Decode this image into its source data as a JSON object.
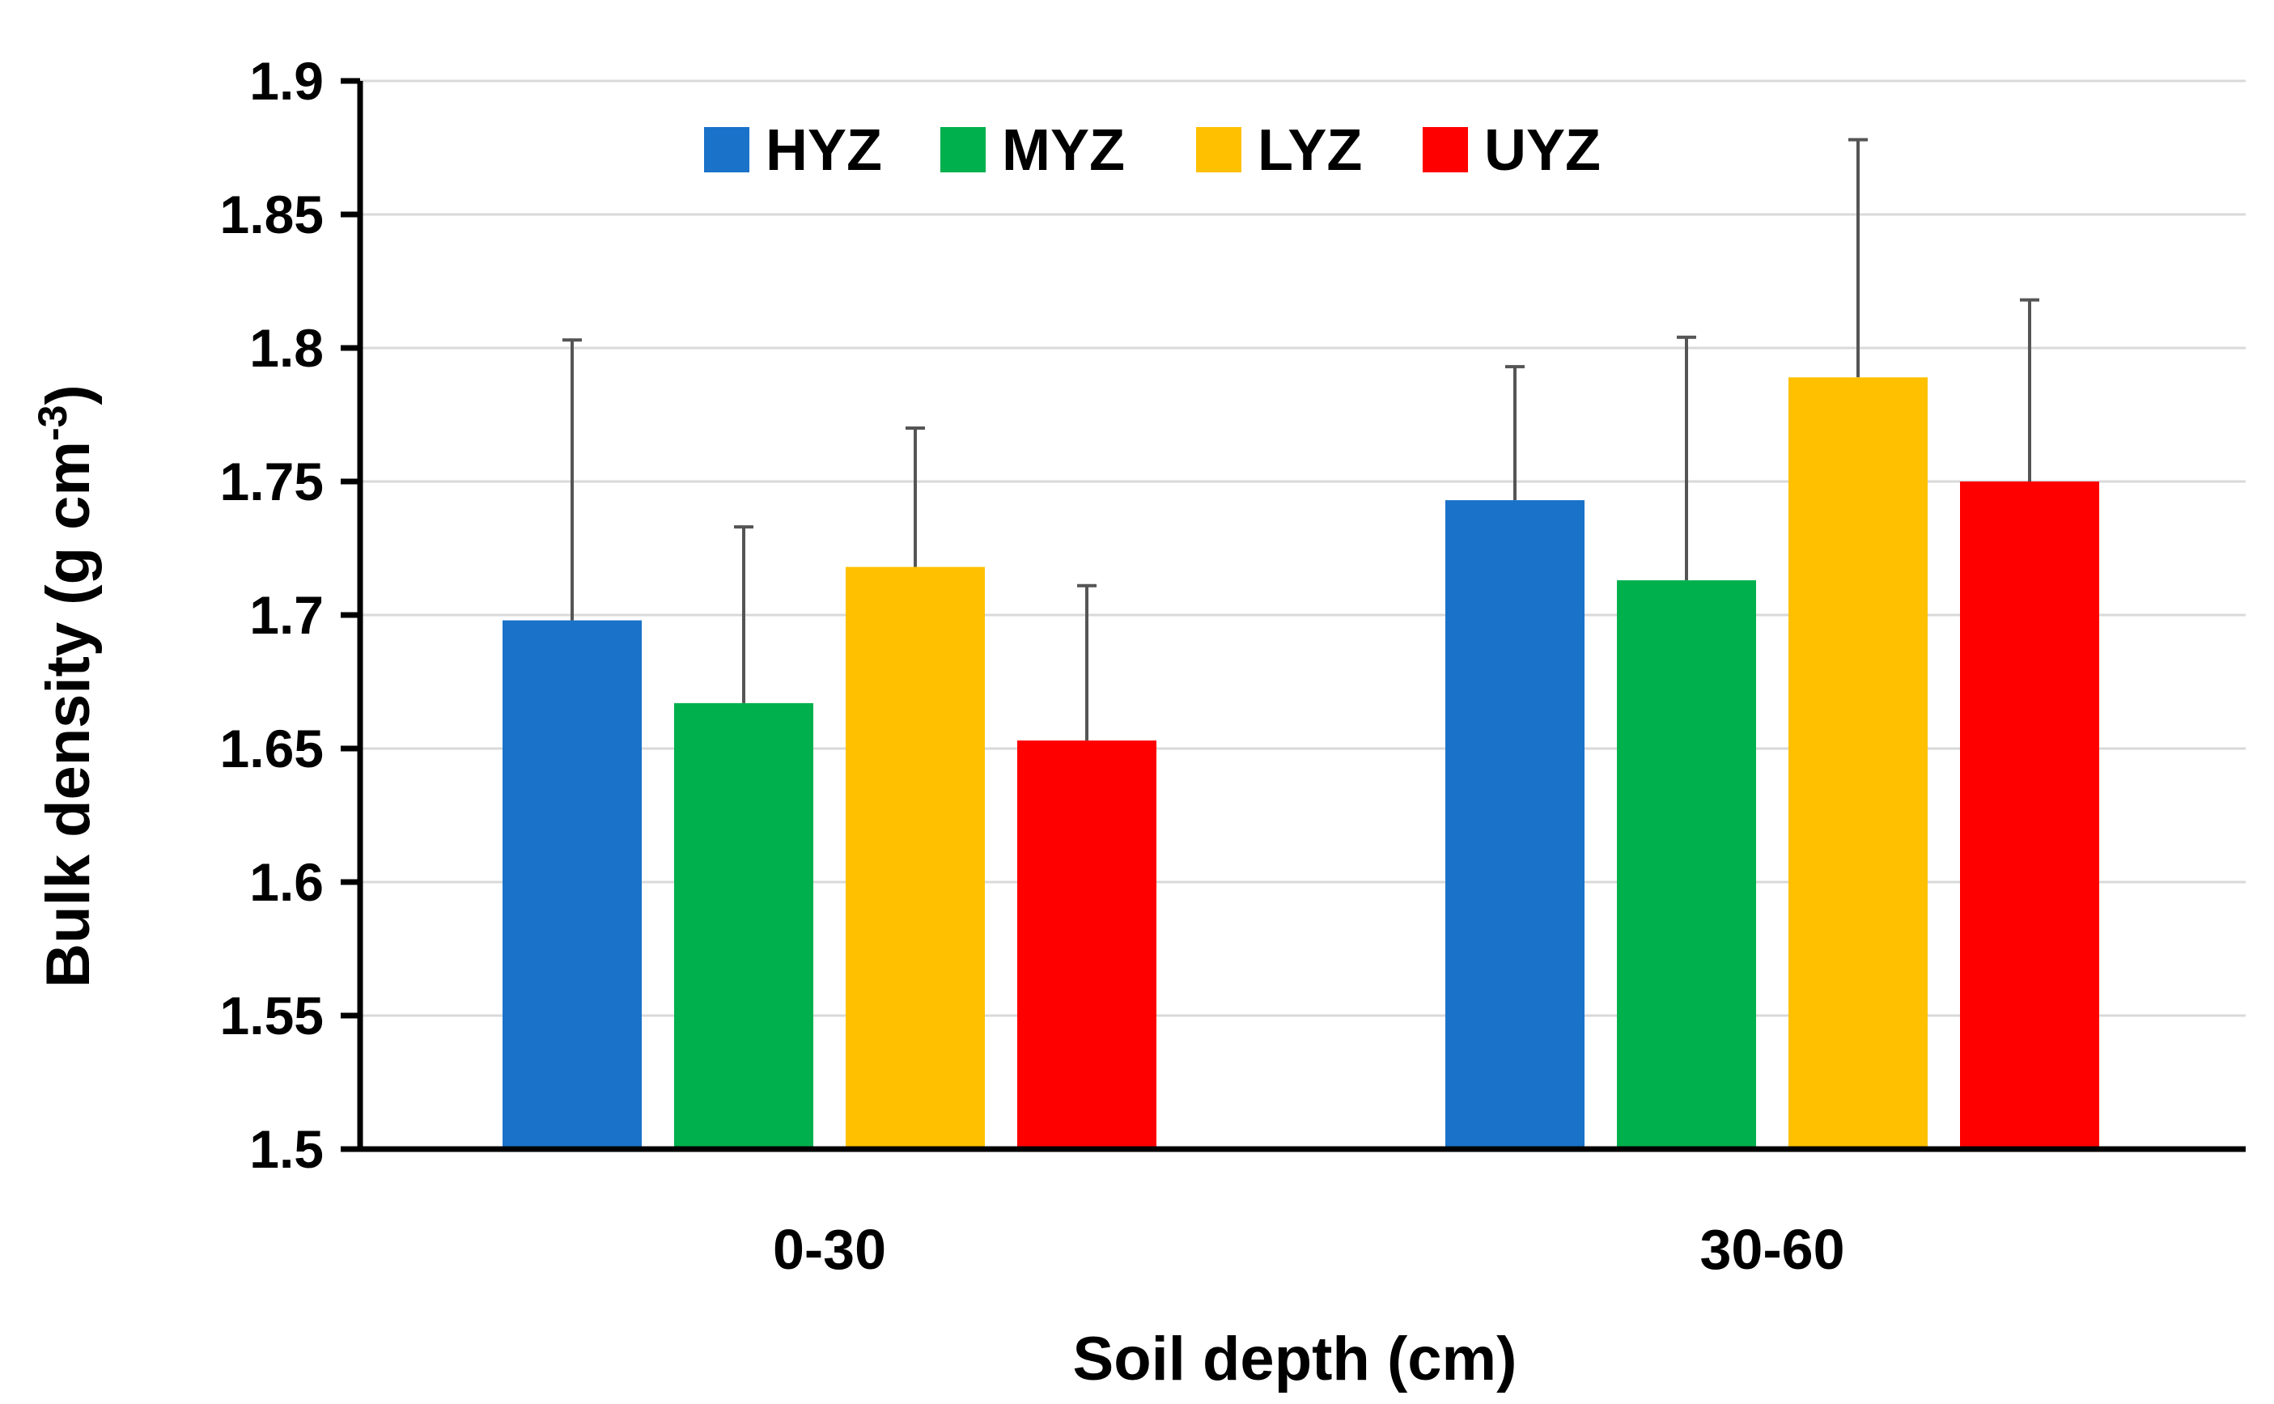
{
  "chart_data": {
    "type": "bar",
    "title": "",
    "xlabel": "Soil depth (cm)",
    "ylabel_main": "Bulk density (g cm",
    "ylabel_sup": "-3",
    "ylabel_close": ")",
    "ylim": [
      1.5,
      1.9
    ],
    "ytick_step": 0.05,
    "yticks": [
      "1.5",
      "1.55",
      "1.6",
      "1.65",
      "1.7",
      "1.75",
      "1.8",
      "1.85",
      "1.9"
    ],
    "grid": true,
    "legend_position": "top",
    "categories": [
      "0-30",
      "30-60"
    ],
    "series": [
      {
        "name": "HYZ",
        "color": "#1a72c9",
        "values": [
          1.698,
          1.743
        ],
        "errors": [
          0.105,
          0.05
        ]
      },
      {
        "name": "MYZ",
        "color": "#00b04c",
        "values": [
          1.667,
          1.713
        ],
        "errors": [
          0.066,
          0.091
        ]
      },
      {
        "name": "LYZ",
        "color": "#ffc000",
        "values": [
          1.718,
          1.789
        ],
        "errors": [
          0.052,
          0.089
        ]
      },
      {
        "name": "UYZ",
        "color": "#ff0000",
        "values": [
          1.653,
          1.75
        ],
        "errors": [
          0.058,
          0.068
        ]
      }
    ]
  }
}
